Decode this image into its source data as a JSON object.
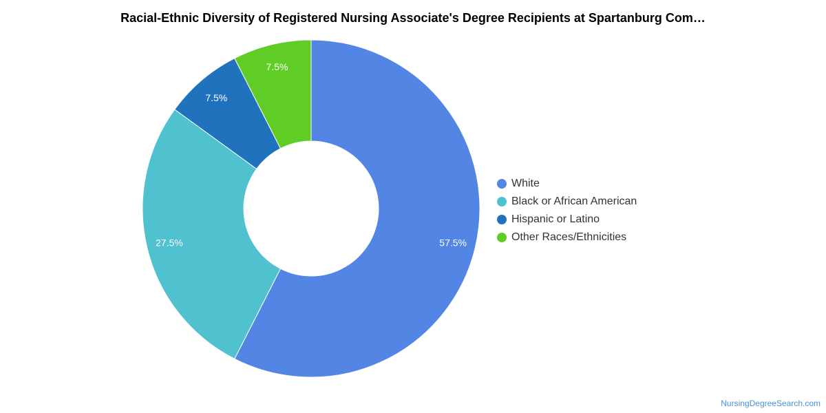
{
  "chart_data": {
    "type": "pie",
    "title": "Racial-Ethnic Diversity of Registered Nursing Associate's Degree Recipients at Spartanburg Com…",
    "series": [
      {
        "name": "White",
        "value": 57.5,
        "label": "57.5%",
        "color": "#5386e4"
      },
      {
        "name": "Black or African American",
        "value": 27.5,
        "label": "27.5%",
        "color": "#4fc1cf"
      },
      {
        "name": "Hispanic or Latino",
        "value": 7.5,
        "label": "7.5%",
        "color": "#1f72bb"
      },
      {
        "name": "Other Races/Ethnicities",
        "value": 7.5,
        "label": "7.5%",
        "color": "#60cc26"
      }
    ],
    "legend_position": "right"
  },
  "legend": {
    "items": [
      {
        "label": "White",
        "color": "#5386e4"
      },
      {
        "label": "Black or African American",
        "color": "#4fc1cf"
      },
      {
        "label": "Hispanic or Latino",
        "color": "#1f72bb"
      },
      {
        "label": "Other Races/Ethnicities",
        "color": "#60cc26"
      }
    ]
  },
  "source": "NursingDegreeSearch.com"
}
